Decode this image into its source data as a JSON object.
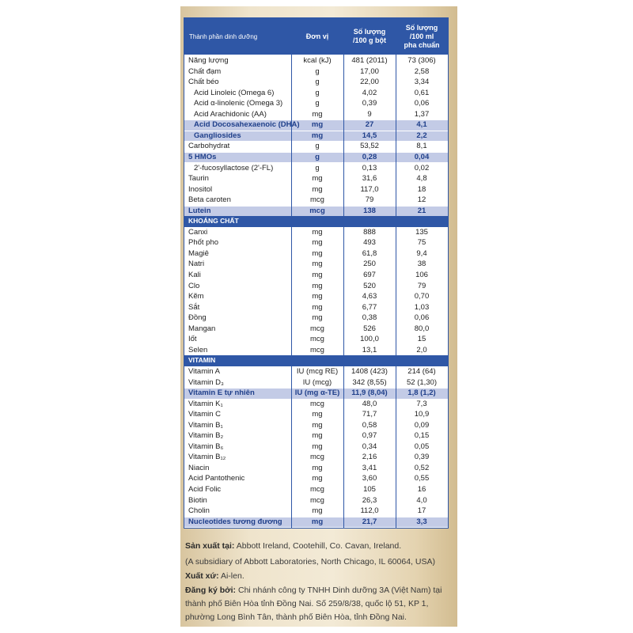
{
  "table": {
    "columns": [
      [
        "Thành phần dinh dưỡng"
      ],
      [
        "Đơn vị"
      ],
      [
        "Số lượng",
        "/100 g bột"
      ],
      [
        "Số lượng",
        "/100 ml",
        "pha chuẩn"
      ]
    ],
    "rows": [
      {
        "cells": [
          "Năng lượng",
          "kcal (kJ)",
          "481 (2011)",
          "73 (306)"
        ]
      },
      {
        "cells": [
          "Chất đạm",
          "g",
          "17,00",
          "2,58"
        ]
      },
      {
        "cells": [
          "Chất béo",
          "g",
          "22,00",
          "3,34"
        ]
      },
      {
        "cells": [
          "Acid Linoleic (Omega 6)",
          "g",
          "4,02",
          "0,61"
        ],
        "indent": true
      },
      {
        "cells": [
          "Acid α-linolenic (Omega 3)",
          "g",
          "0,39",
          "0,06"
        ],
        "indent": true
      },
      {
        "cells": [
          "Acid Arachidonic (AA)",
          "mg",
          "9",
          "1,37"
        ],
        "indent": true
      },
      {
        "cells": [
          "Acid Docosahexaenoic (DHA)",
          "mg",
          "27",
          "4,1"
        ],
        "indent": true,
        "highlight": true
      },
      {
        "cells": [
          "Gangliosides",
          "mg",
          "14,5",
          "2,2"
        ],
        "indent": true,
        "highlight": true
      },
      {
        "cells": [
          "Carbohydrat",
          "g",
          "53,52",
          "8,1"
        ]
      },
      {
        "cells": [
          "5 HMOs",
          "g",
          "0,28",
          "0,04"
        ],
        "highlight": true
      },
      {
        "cells": [
          "2'-fucosyllactose (2'-FL)",
          "g",
          "0,13",
          "0,02"
        ],
        "indent": true
      },
      {
        "cells": [
          "Taurin",
          "mg",
          "31,6",
          "4,8"
        ]
      },
      {
        "cells": [
          "Inositol",
          "mg",
          "117,0",
          "18"
        ]
      },
      {
        "cells": [
          "Beta caroten",
          "mcg",
          "79",
          "12"
        ]
      },
      {
        "cells": [
          "Lutein",
          "mcg",
          "138",
          "21"
        ],
        "highlight": true
      },
      {
        "section": "KHOÁNG CHẤT"
      },
      {
        "cells": [
          "Canxi",
          "mg",
          "888",
          "135"
        ]
      },
      {
        "cells": [
          "Phốt pho",
          "mg",
          "493",
          "75"
        ]
      },
      {
        "cells": [
          "Magiê",
          "mg",
          "61,8",
          "9,4"
        ]
      },
      {
        "cells": [
          "Natri",
          "mg",
          "250",
          "38"
        ]
      },
      {
        "cells": [
          "Kali",
          "mg",
          "697",
          "106"
        ]
      },
      {
        "cells": [
          "Clo",
          "mg",
          "520",
          "79"
        ]
      },
      {
        "cells": [
          "Kẽm",
          "mg",
          "4,63",
          "0,70"
        ]
      },
      {
        "cells": [
          "Sắt",
          "mg",
          "6,77",
          "1,03"
        ]
      },
      {
        "cells": [
          "Đồng",
          "mg",
          "0,38",
          "0,06"
        ]
      },
      {
        "cells": [
          "Mangan",
          "mcg",
          "526",
          "80,0"
        ]
      },
      {
        "cells": [
          "Iốt",
          "mcg",
          "100,0",
          "15"
        ]
      },
      {
        "cells": [
          "Selen",
          "mcg",
          "13,1",
          "2,0"
        ]
      },
      {
        "section": "VITAMIN"
      },
      {
        "cells": [
          "Vitamin A",
          "IU (mcg RE)",
          "1408 (423)",
          "214 (64)"
        ]
      },
      {
        "cells": [
          "Vitamin D₃",
          "IU (mcg)",
          "342 (8,55)",
          "52 (1,30)"
        ]
      },
      {
        "cells": [
          "Vitamin E tự nhiên",
          "IU (mg α-TE)",
          "11,9 (8,04)",
          "1,8 (1,2)"
        ],
        "highlight": true
      },
      {
        "cells": [
          "Vitamin K₁",
          "mcg",
          "48,0",
          "7,3"
        ]
      },
      {
        "cells": [
          "Vitamin C",
          "mg",
          "71,7",
          "10,9"
        ]
      },
      {
        "cells": [
          "Vitamin B₁",
          "mg",
          "0,58",
          "0,09"
        ]
      },
      {
        "cells": [
          "Vitamin B₂",
          "mg",
          "0,97",
          "0,15"
        ]
      },
      {
        "cells": [
          "Vitamin B₆",
          "mg",
          "0,34",
          "0,05"
        ]
      },
      {
        "cells": [
          "Vitamin B₁₂",
          "mcg",
          "2,16",
          "0,39"
        ]
      },
      {
        "cells": [
          "Niacin",
          "mg",
          "3,41",
          "0,52"
        ]
      },
      {
        "cells": [
          "Acid Pantothenic",
          "mg",
          "3,60",
          "0,55"
        ]
      },
      {
        "cells": [
          "Acid Folic",
          "mcg",
          "105",
          "16"
        ]
      },
      {
        "cells": [
          "Biotin",
          "mcg",
          "26,3",
          "4,0"
        ]
      },
      {
        "cells": [
          "Cholin",
          "mg",
          "112,0",
          "17"
        ]
      },
      {
        "cells": [
          "Nucleotides tương đương",
          "mg",
          "21,7",
          "3,3"
        ],
        "highlight": true
      }
    ]
  },
  "footer": {
    "lines": [
      {
        "label": "Sản xuất tại:",
        "text": "Abbott Ireland, Cootehill, Co. Cavan, Ireland."
      },
      {
        "text": "(A subsidiary of Abbott Laboratories, North Chicago, IL 60064, USA)"
      },
      {
        "label": "Xuất xứ:",
        "text": "Ai-len."
      },
      {
        "label": "Đăng ký bởi:",
        "text": "Chi nhánh công ty TNHH Dinh dưỡng 3A (Việt Nam) tại"
      },
      {
        "text": "thành phố Biên Hòa tỉnh Đồng Nai. Số 259/8/38, quốc lộ 51, KP 1,"
      },
      {
        "text": "phường Long Bình Tân, thành phố Biên Hòa, tỉnh Đồng Nai."
      }
    ]
  }
}
